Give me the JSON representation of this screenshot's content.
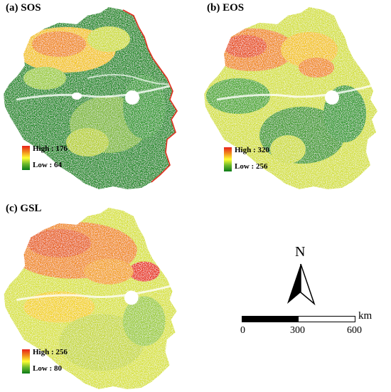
{
  "panels": {
    "sos": {
      "label": "(a) SOS",
      "legend_high": "High : 176",
      "legend_low": "Low : 64"
    },
    "eos": {
      "label": "(b) EOS",
      "legend_high": "High : 320",
      "legend_low": "Low : 256"
    },
    "gsl": {
      "label": "(c) GSL",
      "legend_high": "High : 256",
      "legend_low": "Low : 80"
    }
  },
  "north_arrow": {
    "letter": "N"
  },
  "scale_bar": {
    "unit": "km",
    "ticks": [
      "0",
      "300",
      "600"
    ]
  },
  "colors": {
    "high": "#e8201a",
    "mid": "#ffff33",
    "low": "#0b7a18",
    "river": "#ffffff",
    "coast": "#e03020"
  }
}
